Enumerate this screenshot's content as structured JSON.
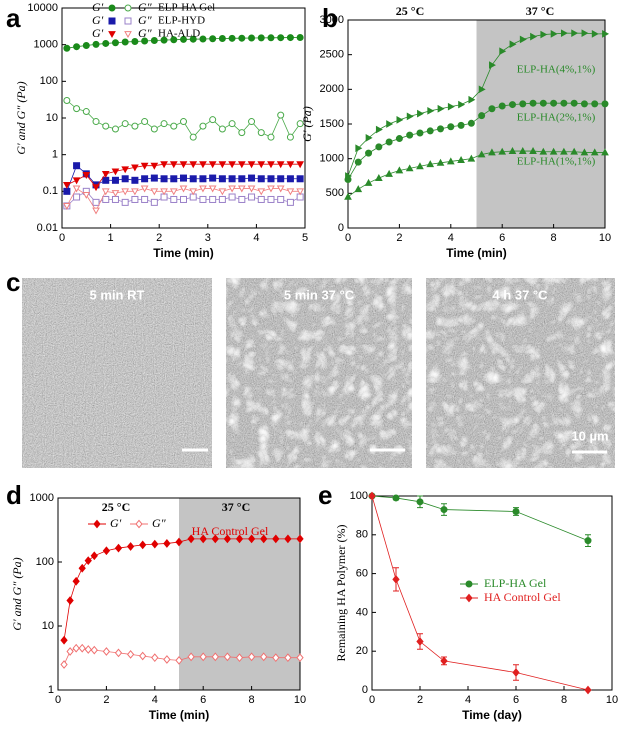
{
  "chart_data": [
    {
      "panel_label": "a",
      "type": "line",
      "log_y": true,
      "x_label": "Time (min)",
      "y_label": "G′ and G″ (Pa)",
      "xlim": [
        0,
        5
      ],
      "xticks": [
        0,
        1,
        2,
        3,
        4,
        5
      ],
      "ylim": [
        0.01,
        10000
      ],
      "yticks": [
        0.01,
        0.1,
        1,
        10,
        100,
        1000,
        10000
      ],
      "legend": "grouped-top",
      "legend_groups": [
        "ELP-HA Gel",
        "ELP-HYD",
        "HA-ALD"
      ],
      "x": [
        0.1,
        0.3,
        0.5,
        0.7,
        0.9,
        1.1,
        1.3,
        1.5,
        1.7,
        1.9,
        2.1,
        2.3,
        2.5,
        2.7,
        2.9,
        3.1,
        3.3,
        3.5,
        3.7,
        3.9,
        4.1,
        4.3,
        4.5,
        4.7,
        4.9
      ],
      "series": [
        {
          "name": "G′",
          "color": "#1a8a1a",
          "marker": "circle",
          "filled": true,
          "values": [
            800,
            880,
            950,
            1020,
            1080,
            1130,
            1180,
            1220,
            1260,
            1300,
            1330,
            1360,
            1390,
            1410,
            1430,
            1450,
            1470,
            1490,
            1500,
            1520,
            1530,
            1540,
            1550,
            1560,
            1570
          ]
        },
        {
          "name": "G″",
          "color": "#4aaa4a",
          "marker": "circle",
          "filled": false,
          "values": [
            30,
            18,
            15,
            8,
            6,
            5,
            7,
            6,
            8,
            5,
            7,
            6,
            8,
            3,
            6,
            9,
            5,
            7,
            4,
            8,
            4,
            3,
            12,
            3,
            7
          ]
        },
        {
          "name": "G′",
          "color": "#1a1aaa",
          "marker": "square",
          "filled": true,
          "values": [
            0.1,
            0.5,
            0.3,
            0.15,
            0.2,
            0.2,
            0.22,
            0.2,
            0.22,
            0.23,
            0.22,
            0.22,
            0.23,
            0.22,
            0.22,
            0.23,
            0.22,
            0.22,
            0.22,
            0.23,
            0.22,
            0.22,
            0.22,
            0.22,
            0.22
          ]
        },
        {
          "name": "G″",
          "color": "#9a80c8",
          "marker": "square",
          "filled": false,
          "values": [
            0.04,
            0.07,
            0.1,
            0.05,
            0.06,
            0.06,
            0.05,
            0.06,
            0.06,
            0.05,
            0.07,
            0.06,
            0.06,
            0.07,
            0.06,
            0.06,
            0.06,
            0.07,
            0.06,
            0.07,
            0.06,
            0.06,
            0.06,
            0.05,
            0.07
          ]
        },
        {
          "name": "G′",
          "color": "#e00000",
          "marker": "triangle-down",
          "filled": true,
          "values": [
            0.15,
            0.2,
            0.28,
            0.13,
            0.3,
            0.35,
            0.4,
            0.45,
            0.5,
            0.5,
            0.55,
            0.55,
            0.55,
            0.55,
            0.55,
            0.55,
            0.55,
            0.55,
            0.55,
            0.55,
            0.55,
            0.55,
            0.55,
            0.55,
            0.55
          ]
        },
        {
          "name": "G″",
          "color": "#f08080",
          "marker": "triangle-down",
          "filled": false,
          "values": [
            0.04,
            0.12,
            0.08,
            0.03,
            0.1,
            0.09,
            0.1,
            0.1,
            0.12,
            0.1,
            0.1,
            0.1,
            0.12,
            0.1,
            0.12,
            0.12,
            0.1,
            0.12,
            0.12,
            0.12,
            0.1,
            0.12,
            0.12,
            0.1,
            0.1
          ]
        }
      ]
    },
    {
      "panel_label": "b",
      "type": "line",
      "log_y": false,
      "x_label": "Time (min)",
      "y_label": "G′ (Pa)",
      "xlim": [
        0,
        10
      ],
      "xticks": [
        0,
        2,
        4,
        6,
        8,
        10
      ],
      "ylim": [
        0,
        3000
      ],
      "yticks": [
        0,
        500,
        1000,
        1500,
        2000,
        2500,
        3000
      ],
      "shade_xrange": [
        5,
        10
      ],
      "annotations": [
        "25 °C",
        "37 °C"
      ],
      "legend": "curve-labels",
      "x": [
        0,
        0.4,
        0.8,
        1.2,
        1.6,
        2,
        2.4,
        2.8,
        3.2,
        3.6,
        4,
        4.4,
        4.8,
        5.2,
        5.6,
        6,
        6.4,
        6.8,
        7.2,
        7.6,
        8,
        8.4,
        8.8,
        9.2,
        9.6,
        10
      ],
      "series": [
        {
          "name": "ELP-HA(4%,1%)",
          "color": "#2a8a2a",
          "marker": "triangle-right",
          "filled": true,
          "values": [
            750,
            1150,
            1300,
            1420,
            1500,
            1560,
            1610,
            1650,
            1690,
            1720,
            1750,
            1780,
            1850,
            2000,
            2350,
            2550,
            2650,
            2720,
            2760,
            2790,
            2800,
            2810,
            2810,
            2810,
            2800,
            2800
          ]
        },
        {
          "name": "ELP-HA(2%,1%)",
          "color": "#2a8a2a",
          "marker": "circle",
          "filled": true,
          "values": [
            700,
            950,
            1080,
            1170,
            1240,
            1290,
            1340,
            1370,
            1400,
            1430,
            1460,
            1480,
            1510,
            1620,
            1720,
            1760,
            1780,
            1790,
            1800,
            1800,
            1800,
            1800,
            1800,
            1790,
            1790,
            1790
          ]
        },
        {
          "name": "ELP-HA(1%,1%)",
          "color": "#2a8a2a",
          "marker": "triangle-up",
          "filled": true,
          "values": [
            450,
            560,
            650,
            720,
            780,
            830,
            860,
            890,
            920,
            940,
            960,
            980,
            1000,
            1060,
            1090,
            1100,
            1110,
            1110,
            1110,
            1100,
            1100,
            1100,
            1100,
            1090,
            1090,
            1090
          ]
        }
      ]
    },
    {
      "panel_label": "d",
      "type": "line",
      "log_y": true,
      "x_label": "Time (min)",
      "y_label": "G′ and G″ (Pa)",
      "xlim": [
        0,
        10
      ],
      "xticks": [
        0,
        2,
        4,
        6,
        8,
        10
      ],
      "ylim": [
        1,
        1000
      ],
      "yticks": [
        1,
        10,
        100,
        1000
      ],
      "shade_xrange": [
        5,
        10
      ],
      "annotations": [
        "25 °C",
        "37 °C",
        "HA Control Gel"
      ],
      "legend": "inline-top",
      "x": [
        0.25,
        0.5,
        0.75,
        1,
        1.25,
        1.5,
        2,
        2.5,
        3,
        3.5,
        4,
        4.5,
        5,
        5.5,
        6,
        6.5,
        7,
        7.5,
        8,
        8.5,
        9,
        9.5,
        10
      ],
      "series": [
        {
          "name": "G′",
          "color": "#e00000",
          "marker": "diamond",
          "filled": true,
          "values": [
            6,
            25,
            50,
            80,
            105,
            125,
            150,
            165,
            175,
            185,
            190,
            195,
            205,
            230,
            230,
            230,
            230,
            230,
            230,
            230,
            230,
            230,
            230
          ]
        },
        {
          "name": "G″",
          "color": "#f07070",
          "marker": "diamond",
          "filled": false,
          "values": [
            2.5,
            4,
            4.5,
            4.5,
            4.3,
            4.2,
            4,
            3.8,
            3.6,
            3.4,
            3.2,
            3,
            2.9,
            3.3,
            3.3,
            3.3,
            3.3,
            3.2,
            3.3,
            3.3,
            3.2,
            3.2,
            3.2
          ]
        }
      ]
    },
    {
      "panel_label": "e",
      "type": "line",
      "log_y": false,
      "x_label": "Time (day)",
      "y_label": "Remaining HA Polymer (%)",
      "xlim": [
        0,
        10
      ],
      "xticks": [
        0,
        2,
        4,
        6,
        8,
        10
      ],
      "ylim": [
        0,
        100
      ],
      "yticks": [
        0,
        20,
        40,
        60,
        80,
        100
      ],
      "legend": "center-right",
      "x": [
        0,
        1,
        2,
        3,
        6,
        9
      ],
      "series": [
        {
          "name": "ELP-HA Gel",
          "color": "#2a8a2a",
          "marker": "circle",
          "filled": true,
          "values": [
            100,
            99,
            97,
            93,
            92,
            77
          ],
          "errors": [
            0,
            1,
            3,
            3,
            2,
            3
          ]
        },
        {
          "name": "HA Control Gel",
          "color": "#e02020",
          "marker": "diamond",
          "filled": true,
          "values": [
            100,
            57,
            25,
            15,
            9,
            0
          ],
          "errors": [
            0,
            6,
            4,
            2,
            4,
            0
          ]
        }
      ]
    }
  ],
  "panel_c": {
    "label": "c",
    "images": [
      {
        "caption": "5 min RT"
      },
      {
        "caption": "5 min 37 °C"
      },
      {
        "caption": "4 h 37 °C"
      }
    ],
    "scale_bar_label": "10 µm"
  }
}
